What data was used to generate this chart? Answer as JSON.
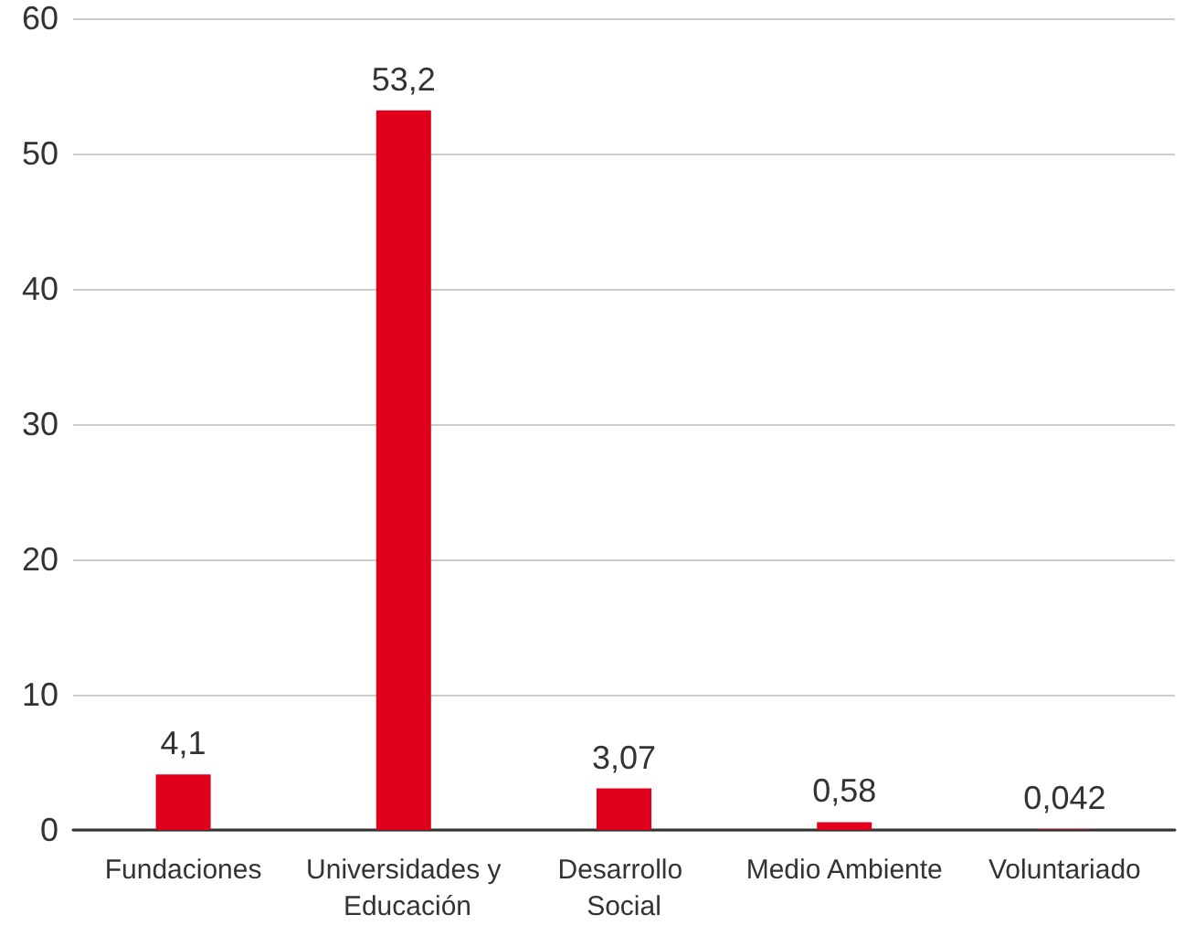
{
  "chart_data": {
    "type": "bar",
    "categories": [
      "Fundaciones",
      "Universidades y Educación",
      "Desarrollo Social",
      "Medio Ambiente",
      "Voluntariado"
    ],
    "values": [
      4.1,
      53.2,
      3.07,
      0.58,
      0.042
    ],
    "value_labels": [
      "4,1",
      "53,2",
      "3,07",
      "0,58",
      "0,042"
    ],
    "color": "#e0001b",
    "ylim": [
      0,
      60
    ],
    "yticks": [
      0,
      10,
      20,
      30,
      40,
      50,
      60
    ],
    "grid": "y"
  }
}
